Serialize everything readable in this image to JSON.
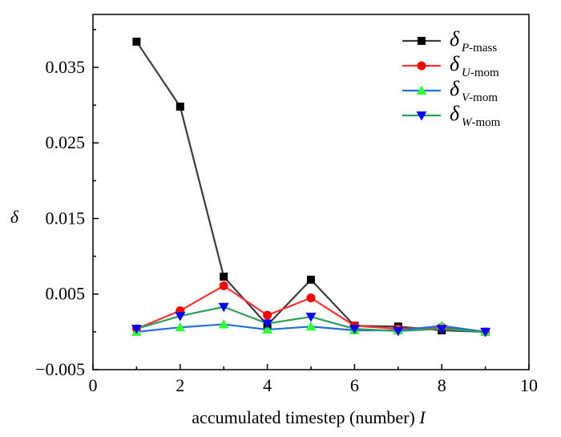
{
  "chart_data": {
    "type": "line",
    "title": "",
    "xlabel_text": "accumulated timestep (number) ",
    "xlabel_var": "I",
    "ylabel": "δ",
    "xlim": [
      0,
      10
    ],
    "ylim": [
      -0.005,
      0.042
    ],
    "x_ticks": [
      0,
      2,
      4,
      6,
      8,
      10
    ],
    "x_tick_labels": [
      "0",
      "2",
      "4",
      "6",
      "8",
      "10"
    ],
    "y_ticks": [
      -0.005,
      0.005,
      0.015,
      0.025,
      0.035
    ],
    "y_tick_labels": [
      "−0.005",
      "0.005",
      "0.015",
      "0.025",
      "0.035"
    ],
    "grid": false,
    "legend_position": "top-right",
    "x": [
      1,
      2,
      3,
      4,
      5,
      6,
      7,
      8,
      9
    ],
    "series": [
      {
        "name": "P-mass",
        "legend_symbol": "δ",
        "legend_sub_var": "P",
        "legend_sub_text": "-mass",
        "color": "#3c3c3c",
        "marker": "square",
        "marker_color": "#000000",
        "values": [
          0.0384,
          0.0298,
          0.0073,
          0.0009,
          0.0069,
          0.0008,
          0.0007,
          0.0002,
          0.0
        ]
      },
      {
        "name": "U-mom",
        "legend_symbol": "δ",
        "legend_sub_var": "U",
        "legend_sub_text": "-mom",
        "color": "#ff3030",
        "marker": "circle",
        "marker_color": "#ff0000",
        "values": [
          0.0004,
          0.0028,
          0.0061,
          0.0022,
          0.0045,
          0.0008,
          0.0004,
          0.0006,
          0.0
        ]
      },
      {
        "name": "V-mom",
        "legend_symbol": "δ",
        "legend_sub_var": "V",
        "legend_sub_text": "-mom",
        "color": "#1f6fdc",
        "marker": "triangle-up",
        "marker_color": "#33ff33",
        "values": [
          0.0,
          0.0006,
          0.001,
          0.0003,
          0.0007,
          0.0002,
          0.0002,
          0.0008,
          0.0
        ]
      },
      {
        "name": "W-mom",
        "legend_symbol": "δ",
        "legend_sub_var": "W",
        "legend_sub_text": "-mom",
        "color": "#2ca05a",
        "marker": "triangle-down",
        "marker_color": "#0000ff",
        "values": [
          0.0004,
          0.0021,
          0.0033,
          0.0011,
          0.002,
          0.0004,
          0.0001,
          0.0004,
          0.0
        ]
      }
    ]
  }
}
